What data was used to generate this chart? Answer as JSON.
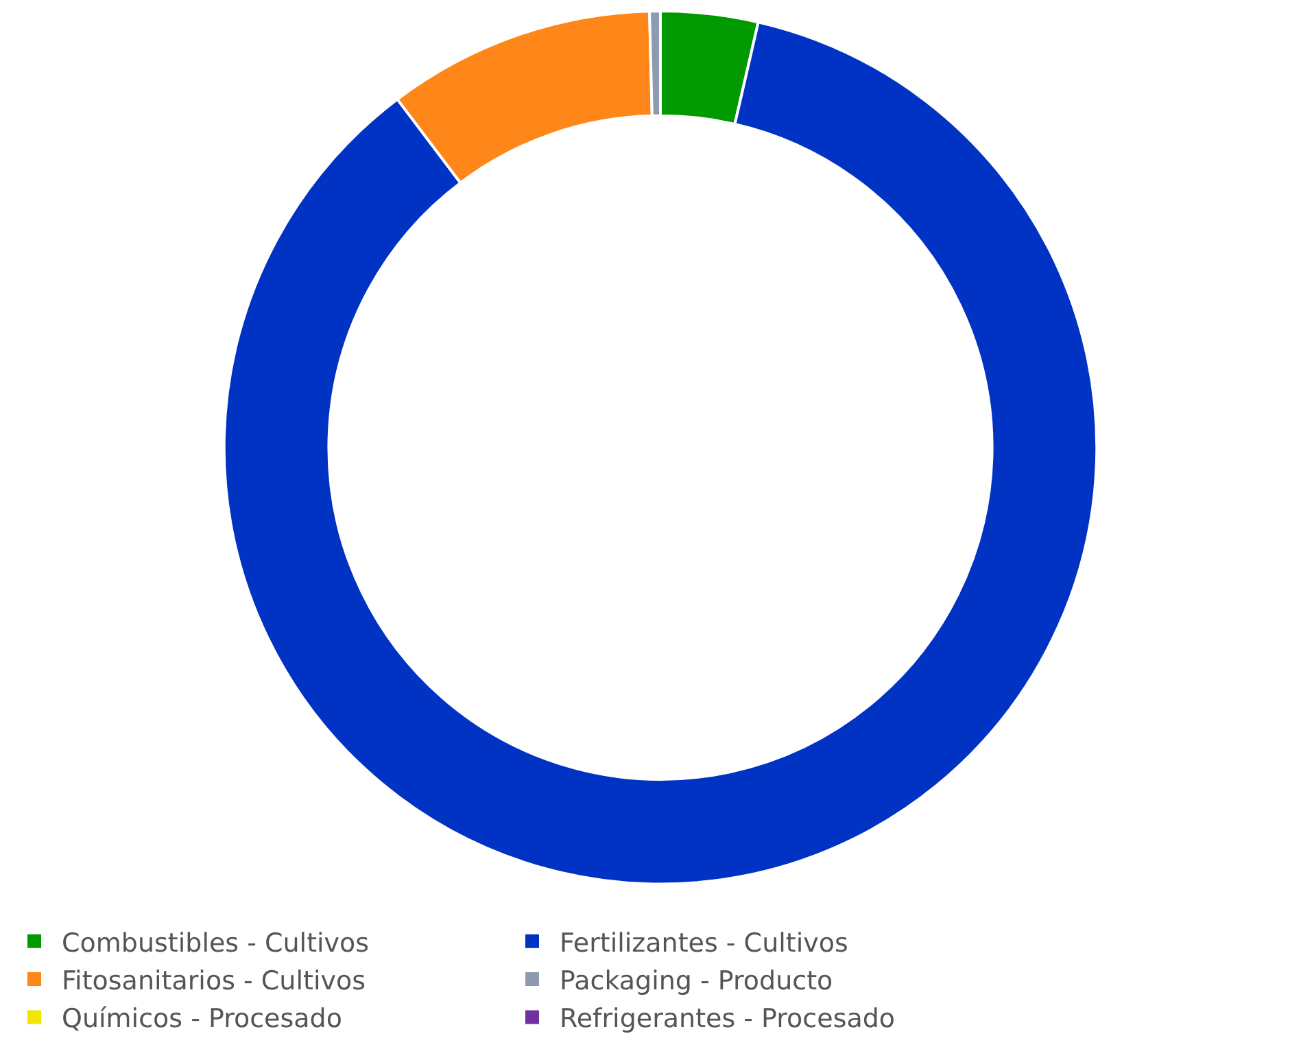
{
  "chart_data": {
    "type": "donut",
    "categories": [
      "Combustibles - Cultivos",
      "Fertilizantes - Cultivos",
      "Fitosanitarios - Cultivos",
      "Packaging - Producto",
      "Químicos - Procesado",
      "Refrigerantes - Procesado"
    ],
    "values": [
      3.6,
      86.1,
      9.9,
      0.4,
      0,
      0
    ],
    "colors": [
      "#009900",
      "#0033c4",
      "#ff8719",
      "#8c9bb0",
      "#f2e600",
      "#7030a0"
    ],
    "legend": "bottom"
  }
}
